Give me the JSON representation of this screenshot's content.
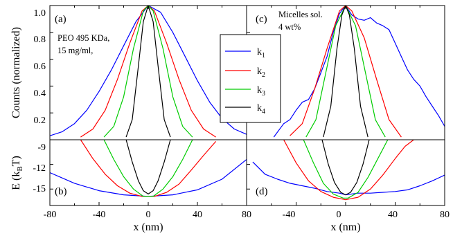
{
  "chart_data": {
    "type": "line",
    "legend": {
      "placement": "center",
      "entries": [
        {
          "key": "k1",
          "base": "k",
          "sub": "1",
          "color": "#0000ff"
        },
        {
          "key": "k2",
          "base": "k",
          "sub": "2",
          "color": "#ff0000"
        },
        {
          "key": "k3",
          "base": "k",
          "sub": "3",
          "color": "#00cc00"
        },
        {
          "key": "k4",
          "base": "k",
          "sub": "4",
          "color": "#000000"
        }
      ]
    },
    "axes": {
      "left_top_ylabel": "Counts (normalized)",
      "left_bottom_ylabel": {
        "base": "E (k",
        "sub": "B",
        "end": "T)"
      },
      "left_xlabel": "x (nm)",
      "right_xlabel": "x (nm)",
      "x_ticks_left": [
        "-80",
        "-40",
        "0",
        "40",
        "80"
      ],
      "x_ticks_right": [
        "-40",
        "0",
        "40",
        "80"
      ],
      "top_y_ticks": [
        "1.0",
        "0.8",
        "0.6",
        "0.4",
        "0.2"
      ],
      "bottom_y_ticks": [
        "-9",
        "-12",
        "-15"
      ],
      "xlim": [
        -80,
        80
      ],
      "top_ylim": [
        0.0,
        1.0
      ],
      "bottom_ylim": [
        -17,
        -9
      ]
    },
    "panels": [
      {
        "id": "a",
        "label": "(a)",
        "annotation": [
          "PEO 495 KDa,",
          "15 mg/ml,"
        ],
        "series": [
          {
            "key": "k1",
            "x": [
              -80,
              -70,
              -60,
              -50,
              -40,
              -30,
              -20,
              -10,
              0,
              10,
              20,
              30,
              40,
              50,
              60,
              70,
              80
            ],
            "y": [
              0.03,
              0.06,
              0.12,
              0.22,
              0.36,
              0.52,
              0.7,
              0.88,
              1.0,
              0.95,
              0.8,
              0.62,
              0.44,
              0.28,
              0.16,
              0.08,
              0.04
            ]
          },
          {
            "key": "k2",
            "x": [
              -55,
              -45,
              -35,
              -25,
              -15,
              -5,
              0,
              5,
              15,
              25,
              35,
              45,
              55
            ],
            "y": [
              0.02,
              0.08,
              0.22,
              0.45,
              0.72,
              0.96,
              1.0,
              0.96,
              0.72,
              0.45,
              0.22,
              0.08,
              0.02
            ]
          },
          {
            "key": "k3",
            "x": [
              -36,
              -28,
              -20,
              -12,
              -4,
              0,
              4,
              12,
              20,
              28,
              36
            ],
            "y": [
              0.02,
              0.1,
              0.32,
              0.68,
              0.96,
              1.0,
              0.96,
              0.68,
              0.32,
              0.1,
              0.02
            ]
          },
          {
            "key": "k4",
            "x": [
              -18,
              -13,
              -8,
              -4,
              0,
              4,
              8,
              13,
              18
            ],
            "y": [
              0.02,
              0.15,
              0.55,
              0.88,
              1.0,
              0.88,
              0.55,
              0.15,
              0.02
            ]
          }
        ]
      },
      {
        "id": "b",
        "label": "(b)",
        "series": [
          {
            "key": "k1",
            "x": [
              -80,
              -60,
              -40,
              -20,
              0,
              20,
              40,
              60,
              80
            ],
            "y": [
              -13.0,
              -14.3,
              -15.2,
              -15.7,
              -15.9,
              -15.7,
              -15.1,
              -13.8,
              -11.4
            ]
          },
          {
            "key": "k2",
            "x": [
              -55,
              -45,
              -35,
              -25,
              -15,
              -5,
              5,
              15,
              25,
              35,
              45,
              55
            ],
            "y": [
              -9.0,
              -11.3,
              -13.2,
              -14.6,
              -15.5,
              -15.9,
              -15.9,
              -15.4,
              -14.4,
              -12.7,
              -10.9,
              -9.2
            ]
          },
          {
            "key": "k3",
            "x": [
              -36,
              -28,
              -20,
              -12,
              -4,
              4,
              12,
              20,
              28,
              36
            ],
            "y": [
              -9.0,
              -11.4,
              -13.5,
              -15.0,
              -15.9,
              -15.9,
              -15.0,
              -13.5,
              -11.4,
              -9.0
            ]
          },
          {
            "key": "k4",
            "x": [
              -18,
              -13,
              -8,
              -4,
              0,
              4,
              8,
              13,
              18
            ],
            "y": [
              -9.0,
              -11.7,
              -14.0,
              -15.2,
              -15.6,
              -15.2,
              -14.0,
              -11.7,
              -9.0
            ]
          }
        ]
      },
      {
        "id": "c",
        "label": "(c)",
        "annotation": [
          "Micelles sol.",
          "4 wt%"
        ],
        "series": [
          {
            "key": "k1",
            "x": [
              -58,
              -50,
              -45,
              -40,
              -35,
              -30,
              -25,
              -20,
              -15,
              -10,
              -5,
              0,
              5,
              10,
              15,
              20,
              25,
              30,
              35,
              40,
              45,
              50,
              55,
              60,
              65,
              70,
              75,
              80
            ],
            "y": [
              0.02,
              0.12,
              0.15,
              0.22,
              0.28,
              0.3,
              0.38,
              0.5,
              0.62,
              0.8,
              0.94,
              1.0,
              0.93,
              0.9,
              0.89,
              0.91,
              0.87,
              0.85,
              0.82,
              0.72,
              0.62,
              0.52,
              0.45,
              0.4,
              0.32,
              0.25,
              0.18,
              0.1
            ]
          },
          {
            "key": "k2",
            "x": [
              -45,
              -35,
              -25,
              -15,
              -5,
              0,
              5,
              15,
              25,
              35,
              45
            ],
            "y": [
              0.03,
              0.12,
              0.38,
              0.68,
              0.96,
              1.0,
              0.96,
              0.76,
              0.45,
              0.15,
              0.02
            ]
          },
          {
            "key": "k3",
            "x": [
              -32,
              -24,
              -16,
              -8,
              0,
              8,
              16,
              24,
              32
            ],
            "y": [
              0.02,
              0.15,
              0.5,
              0.85,
              1.0,
              0.85,
              0.5,
              0.15,
              0.02
            ]
          },
          {
            "key": "k4",
            "x": [
              -18,
              -12,
              -7,
              -3,
              0,
              3,
              7,
              12,
              18
            ],
            "y": [
              0.02,
              0.25,
              0.68,
              0.93,
              1.0,
              0.93,
              0.68,
              0.25,
              0.02
            ]
          }
        ]
      },
      {
        "id": "d",
        "label": "(d)",
        "series": [
          {
            "key": "k1",
            "x": [
              -75,
              -65,
              -55,
              -45,
              -35,
              -25,
              -15,
              -5,
              0,
              10,
              20,
              30,
              40,
              50,
              60,
              70,
              80
            ],
            "y": [
              -11.7,
              -13.2,
              -13.8,
              -14.3,
              -14.6,
              -14.9,
              -15.3,
              -15.5,
              -15.7,
              -15.5,
              -15.5,
              -15.4,
              -15.3,
              -15.1,
              -14.6,
              -14.0,
              -13.3
            ]
          },
          {
            "key": "k2",
            "x": [
              -50,
              -40,
              -30,
              -20,
              -10,
              0,
              10,
              20,
              30,
              40,
              48,
              55
            ],
            "y": [
              -9.0,
              -11.8,
              -14.0,
              -15.3,
              -16.0,
              -16.3,
              -16.0,
              -15.0,
              -13.3,
              -11.3,
              -9.8,
              -9.0
            ]
          },
          {
            "key": "k3",
            "x": [
              -34,
              -26,
              -18,
              -10,
              -2,
              2,
              10,
              18,
              26,
              34
            ],
            "y": [
              -9.0,
              -11.8,
              -14.3,
              -15.6,
              -16.1,
              -16.1,
              -15.4,
              -13.6,
              -11.3,
              -9.0
            ]
          },
          {
            "key": "k4",
            "x": [
              -19,
              -14,
              -9,
              -4,
              0,
              4,
              9,
              14,
              19
            ],
            "y": [
              -9.0,
              -12.0,
              -14.2,
              -15.4,
              -15.7,
              -15.4,
              -14.2,
              -12.0,
              -9.0
            ]
          }
        ]
      }
    ]
  }
}
